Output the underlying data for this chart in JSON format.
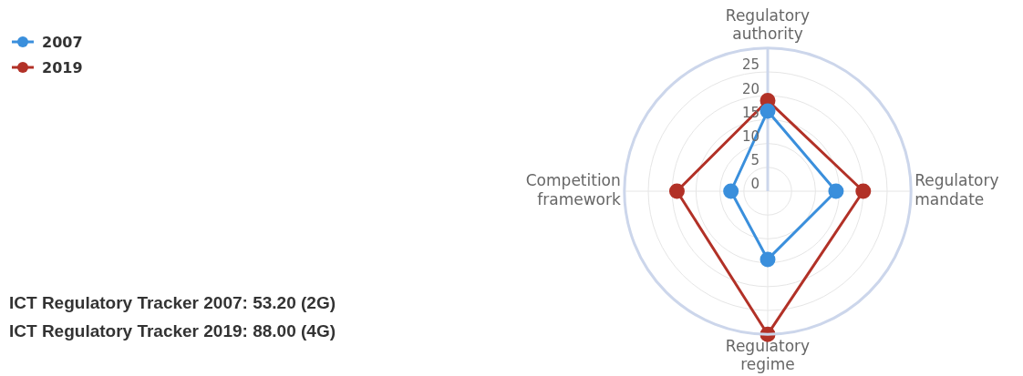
{
  "chart_data": {
    "type": "radar",
    "categories": [
      "Regulatory authority",
      "Regulatory mandate",
      "Regulatory regime",
      "Competition framework"
    ],
    "series": [
      {
        "name": "2007",
        "color": "#3a8fdc",
        "values": [
          16.8,
          14.3,
          14.3,
          7.7
        ]
      },
      {
        "name": "2019",
        "color": "#b23127",
        "values": [
          19,
          20,
          30,
          19
        ]
      }
    ],
    "ylim": [
      0,
      30
    ],
    "yticks": [
      0,
      5,
      10,
      15,
      20,
      25
    ],
    "grid": true,
    "legend": "top left",
    "marker": "circle",
    "annotations": [
      "ICT Regulatory Tracker 2007: 53.20 (2G)",
      "ICT Regulatory Tracker 2019: 88.00 (4G)"
    ]
  }
}
